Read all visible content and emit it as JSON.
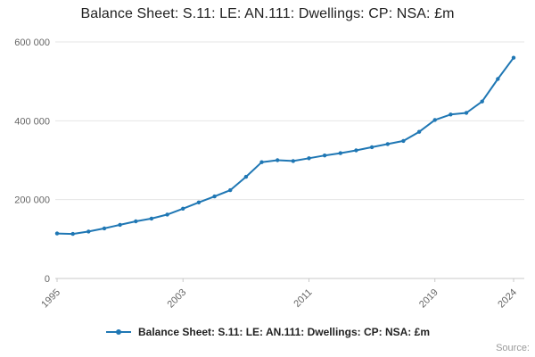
{
  "chart_data": {
    "type": "line",
    "title": "Balance Sheet: S.11: LE: AN.111: Dwellings: CP: NSA: £m",
    "units": "£m",
    "xlabel": "",
    "ylabel": "",
    "x": [
      1995,
      1996,
      1997,
      1998,
      1999,
      2000,
      2001,
      2002,
      2003,
      2004,
      2005,
      2006,
      2007,
      2008,
      2009,
      2010,
      2011,
      2012,
      2013,
      2014,
      2015,
      2016,
      2017,
      2018,
      2019,
      2020,
      2021,
      2022,
      2023,
      2024
    ],
    "series": [
      {
        "name": "Balance Sheet: S.11: LE: AN.111: Dwellings: CP: NSA: £m",
        "color": "#1f77b4",
        "values": [
          114000,
          113000,
          119000,
          127000,
          136000,
          145000,
          152000,
          162000,
          177000,
          193000,
          208000,
          224000,
          258000,
          295000,
          300000,
          298000,
          305000,
          312000,
          318000,
          325000,
          333000,
          341000,
          349000,
          372000,
          402000,
          416000,
          420000,
          449000,
          506000,
          560000
        ]
      }
    ],
    "ylim": [
      0,
      600000
    ],
    "y_ticks": [
      0,
      200000,
      400000,
      600000
    ],
    "y_tick_labels": [
      "0",
      "200 000",
      "400 000",
      "600 000"
    ],
    "x_ticks": [
      1995,
      2003,
      2011,
      2019,
      2024
    ],
    "grid": "horizontal",
    "legend_position": "bottom",
    "marker": "circle"
  },
  "footer": {
    "source_label": "Source:"
  }
}
